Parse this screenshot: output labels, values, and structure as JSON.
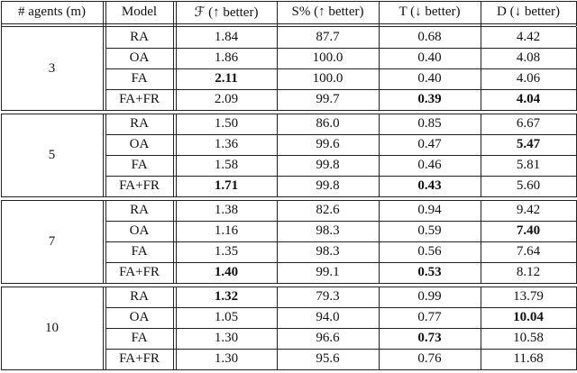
{
  "table": {
    "header": [
      "# agents (m)",
      "Model",
      "ℱ (↑ better)",
      "S% (↑ better)",
      "T (↓ better)",
      "D (↓ better)"
    ],
    "groups": [
      {
        "agents": "3",
        "rows": [
          {
            "model": "RA",
            "cells": [
              "1.84",
              "87.7",
              "0.68",
              "4.42"
            ],
            "bold": [
              false,
              false,
              false,
              false
            ]
          },
          {
            "model": "OA",
            "cells": [
              "1.86",
              "100.0",
              "0.40",
              "4.08"
            ],
            "bold": [
              false,
              false,
              false,
              false
            ]
          },
          {
            "model": "FA",
            "cells": [
              "2.11",
              "100.0",
              "0.40",
              "4.06"
            ],
            "bold": [
              true,
              false,
              false,
              false
            ]
          },
          {
            "model": "FA+FR",
            "cells": [
              "2.09",
              "99.7",
              "0.39",
              "4.04"
            ],
            "bold": [
              false,
              false,
              true,
              true
            ]
          }
        ]
      },
      {
        "agents": "5",
        "rows": [
          {
            "model": "RA",
            "cells": [
              "1.50",
              "86.0",
              "0.85",
              "6.67"
            ],
            "bold": [
              false,
              false,
              false,
              false
            ]
          },
          {
            "model": "OA",
            "cells": [
              "1.36",
              "99.6",
              "0.47",
              "5.47"
            ],
            "bold": [
              false,
              false,
              false,
              true
            ]
          },
          {
            "model": "FA",
            "cells": [
              "1.58",
              "99.8",
              "0.46",
              "5.81"
            ],
            "bold": [
              false,
              false,
              false,
              false
            ]
          },
          {
            "model": "FA+FR",
            "cells": [
              "1.71",
              "99.8",
              "0.43",
              "5.60"
            ],
            "bold": [
              true,
              false,
              true,
              false
            ]
          }
        ]
      },
      {
        "agents": "7",
        "rows": [
          {
            "model": "RA",
            "cells": [
              "1.38",
              "82.6",
              "0.94",
              "9.42"
            ],
            "bold": [
              false,
              false,
              false,
              false
            ]
          },
          {
            "model": "OA",
            "cells": [
              "1.16",
              "98.3",
              "0.59",
              "7.40"
            ],
            "bold": [
              false,
              false,
              false,
              true
            ]
          },
          {
            "model": "FA",
            "cells": [
              "1.35",
              "98.3",
              "0.56",
              "7.64"
            ],
            "bold": [
              false,
              false,
              false,
              false
            ]
          },
          {
            "model": "FA+FR",
            "cells": [
              "1.40",
              "99.1",
              "0.53",
              "8.12"
            ],
            "bold": [
              true,
              false,
              true,
              false
            ]
          }
        ]
      },
      {
        "agents": "10",
        "rows": [
          {
            "model": "RA",
            "cells": [
              "1.32",
              "79.3",
              "0.99",
              "13.79"
            ],
            "bold": [
              true,
              false,
              false,
              false
            ]
          },
          {
            "model": "OA",
            "cells": [
              "1.05",
              "94.0",
              "0.77",
              "10.04"
            ],
            "bold": [
              false,
              false,
              false,
              true
            ]
          },
          {
            "model": "FA",
            "cells": [
              "1.30",
              "96.6",
              "0.73",
              "10.58"
            ],
            "bold": [
              false,
              false,
              true,
              false
            ]
          },
          {
            "model": "FA+FR",
            "cells": [
              "1.30",
              "95.6",
              "0.76",
              "11.68"
            ],
            "bold": [
              false,
              false,
              false,
              false
            ]
          }
        ]
      }
    ]
  }
}
